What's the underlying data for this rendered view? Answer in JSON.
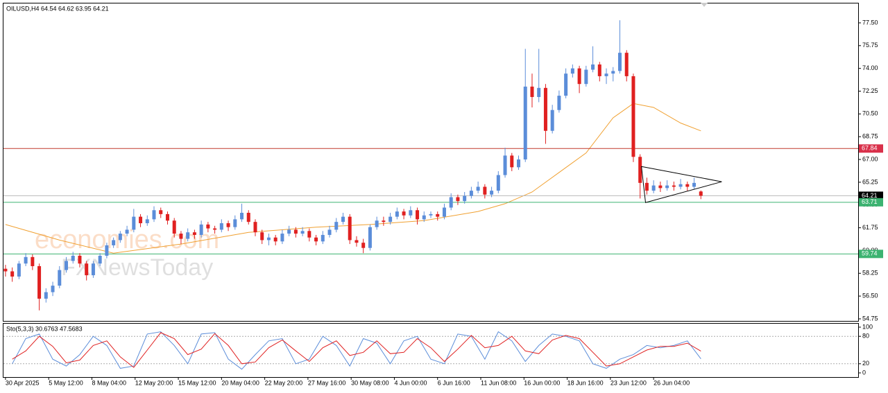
{
  "chart_data": {
    "type": "candlestick",
    "title": "OILUSD,H4  64.54 64.62 63.95 64.21",
    "watermarks": [
      "economies.com",
      "FXNewsToday"
    ],
    "up_color": "#5b8dd9",
    "down_color": "#e02020",
    "xlim": [
      -0.3,
      126.3
    ],
    "xticks": [
      {
        "value": 0,
        "label": "30 Apr 2025"
      },
      {
        "value": 6.4,
        "label": "5 May 12:00"
      },
      {
        "value": 12.8,
        "label": "8 May 04:00"
      },
      {
        "value": 19.2,
        "label": "12 May 20:00"
      },
      {
        "value": 25.6,
        "label": "15 May 12:00"
      },
      {
        "value": 32,
        "label": "20 May 04:00"
      },
      {
        "value": 38.4,
        "label": "22 May 20:00"
      },
      {
        "value": 44.8,
        "label": "27 May 16:00"
      },
      {
        "value": 51.2,
        "label": "30 May 08:00"
      },
      {
        "value": 57.6,
        "label": "4 Jun 00:00"
      },
      {
        "value": 64,
        "label": "6 Jun 16:00"
      },
      {
        "value": 70.4,
        "label": "11 Jun 08:00"
      },
      {
        "value": 76.8,
        "label": "16 Jun 00:00"
      },
      {
        "value": 83.2,
        "label": "18 Jun 16:00"
      },
      {
        "value": 89.6,
        "label": "23 Jun 12:00"
      },
      {
        "value": 96,
        "label": "26 Jun 04:00"
      }
    ],
    "ylim": [
      54.59,
      78.99
    ],
    "yticks": [
      {
        "value": 77.5,
        "label": "77.50"
      },
      {
        "value": 75.75,
        "label": "75.75"
      },
      {
        "value": 74,
        "label": "74.00"
      },
      {
        "value": 72.25,
        "label": "72.25"
      },
      {
        "value": 70.5,
        "label": "70.50"
      },
      {
        "value": 68.75,
        "label": "68.75"
      },
      {
        "value": 67,
        "label": "67.00"
      },
      {
        "value": 65.25,
        "label": "65.25"
      },
      {
        "value": 63.5,
        "label": "63.50"
      },
      {
        "value": 61.75,
        "label": "61.75"
      },
      {
        "value": 60,
        "label": "60.00"
      },
      {
        "value": 58.25,
        "label": "58.25"
      },
      {
        "value": 56.5,
        "label": "56.50"
      },
      {
        "value": 54.75,
        "label": "54.75"
      }
    ],
    "ohlc": [
      [
        58.6,
        58.9,
        58.0,
        58.4
      ],
      [
        58.4,
        58.7,
        57.6,
        58.0
      ],
      [
        58.0,
        59.2,
        57.8,
        59.0
      ],
      [
        59.0,
        59.8,
        58.8,
        59.5
      ],
      [
        59.5,
        59.7,
        58.5,
        58.8
      ],
      [
        58.8,
        59.0,
        55.4,
        56.3
      ],
      [
        56.3,
        57.1,
        56.0,
        56.8
      ],
      [
        56.8,
        57.6,
        56.5,
        57.3
      ],
      [
        57.3,
        58.8,
        57.1,
        58.5
      ],
      [
        58.5,
        59.5,
        58.3,
        59.2
      ],
      [
        59.2,
        59.9,
        59.0,
        59.6
      ],
      [
        59.6,
        59.8,
        58.7,
        59.0
      ],
      [
        59.0,
        59.2,
        57.7,
        58.1
      ],
      [
        58.1,
        59.2,
        57.9,
        59.0
      ],
      [
        59.0,
        59.8,
        58.8,
        59.6
      ],
      [
        59.6,
        60.6,
        59.4,
        60.4
      ],
      [
        60.4,
        61.0,
        60.2,
        60.8
      ],
      [
        60.8,
        61.5,
        60.6,
        61.3
      ],
      [
        61.3,
        61.9,
        61.1,
        61.6
      ],
      [
        61.6,
        63.2,
        61.4,
        62.6
      ],
      [
        62.6,
        62.8,
        61.8,
        62.1
      ],
      [
        62.1,
        62.7,
        61.9,
        62.4
      ],
      [
        62.4,
        63.4,
        62.2,
        63.1
      ],
      [
        63.1,
        63.3,
        62.5,
        62.8
      ],
      [
        62.8,
        63.0,
        62.0,
        62.3
      ],
      [
        62.3,
        62.5,
        61.0,
        61.3
      ],
      [
        61.3,
        61.5,
        60.5,
        60.9
      ],
      [
        60.9,
        61.7,
        60.7,
        61.4
      ],
      [
        61.4,
        61.6,
        60.9,
        61.2
      ],
      [
        61.2,
        62.3,
        61.0,
        62.0
      ],
      [
        62.0,
        62.2,
        61.4,
        61.7
      ],
      [
        61.7,
        61.9,
        61.3,
        61.6
      ],
      [
        61.6,
        62.4,
        61.4,
        62.1
      ],
      [
        62.1,
        62.3,
        61.5,
        61.8
      ],
      [
        61.8,
        62.7,
        61.6,
        62.4
      ],
      [
        62.4,
        63.6,
        62.2,
        62.9
      ],
      [
        62.9,
        63.1,
        62.0,
        62.2
      ],
      [
        62.2,
        62.4,
        61.1,
        61.4
      ],
      [
        61.4,
        61.6,
        60.5,
        60.8
      ],
      [
        60.8,
        61.3,
        60.4,
        61.0
      ],
      [
        61.0,
        61.2,
        60.4,
        60.7
      ],
      [
        60.7,
        61.6,
        60.5,
        61.3
      ],
      [
        61.3,
        61.9,
        61.1,
        61.6
      ],
      [
        61.6,
        61.8,
        61.0,
        61.3
      ],
      [
        61.3,
        61.8,
        61.1,
        61.5
      ],
      [
        61.5,
        61.7,
        60.7,
        61.0
      ],
      [
        61.0,
        61.2,
        60.4,
        60.7
      ],
      [
        60.7,
        61.5,
        60.5,
        61.2
      ],
      [
        61.2,
        61.9,
        61.0,
        61.6
      ],
      [
        61.6,
        62.5,
        61.4,
        62.2
      ],
      [
        62.2,
        62.9,
        62.0,
        62.6
      ],
      [
        62.6,
        62.8,
        60.5,
        60.8
      ],
      [
        60.8,
        61.1,
        60.3,
        60.6
      ],
      [
        60.6,
        60.9,
        59.8,
        60.2
      ],
      [
        60.2,
        62.0,
        60.0,
        61.8
      ],
      [
        61.8,
        62.6,
        61.6,
        62.3
      ],
      [
        62.3,
        62.6,
        61.9,
        62.2
      ],
      [
        62.2,
        62.9,
        62.0,
        62.6
      ],
      [
        62.6,
        63.3,
        62.4,
        63.0
      ],
      [
        63.0,
        63.2,
        62.4,
        62.7
      ],
      [
        62.7,
        63.4,
        62.5,
        63.1
      ],
      [
        63.1,
        63.3,
        62.0,
        62.4
      ],
      [
        62.4,
        63.0,
        62.2,
        62.7
      ],
      [
        62.7,
        63.0,
        62.5,
        62.8
      ],
      [
        62.8,
        63.0,
        62.3,
        62.6
      ],
      [
        62.6,
        63.6,
        62.4,
        63.3
      ],
      [
        63.3,
        64.4,
        63.1,
        64.1
      ],
      [
        64.1,
        64.3,
        63.5,
        63.8
      ],
      [
        63.8,
        64.5,
        63.6,
        64.2
      ],
      [
        64.2,
        64.9,
        64.0,
        64.6
      ],
      [
        64.6,
        65.3,
        64.4,
        64.9
      ],
      [
        64.9,
        65.1,
        64.0,
        64.3
      ],
      [
        64.3,
        64.9,
        64.1,
        64.6
      ],
      [
        64.6,
        66.1,
        64.4,
        65.8
      ],
      [
        65.8,
        67.9,
        65.6,
        67.3
      ],
      [
        67.3,
        67.5,
        66.1,
        66.4
      ],
      [
        66.4,
        67.3,
        66.2,
        67.0
      ],
      [
        67.0,
        75.5,
        66.8,
        72.6
      ],
      [
        72.6,
        73.6,
        71.0,
        71.8
      ],
      [
        71.8,
        75.5,
        71.4,
        72.5
      ],
      [
        72.5,
        72.8,
        68.2,
        69.2
      ],
      [
        69.2,
        71.2,
        69.0,
        70.8
      ],
      [
        70.8,
        72.3,
        70.6,
        71.9
      ],
      [
        71.9,
        74.0,
        71.7,
        73.6
      ],
      [
        73.6,
        74.3,
        73.3,
        74.0
      ],
      [
        74.0,
        74.2,
        72.1,
        72.8
      ],
      [
        72.8,
        74.2,
        72.6,
        73.9
      ],
      [
        73.9,
        75.7,
        73.7,
        74.3
      ],
      [
        74.3,
        74.5,
        73.0,
        73.4
      ],
      [
        73.4,
        74.0,
        72.8,
        73.6
      ],
      [
        73.6,
        74.1,
        73.0,
        73.8
      ],
      [
        73.8,
        77.7,
        73.6,
        75.2
      ],
      [
        75.2,
        75.4,
        73.0,
        73.4
      ],
      [
        73.4,
        73.6,
        66.8,
        67.2
      ],
      [
        67.2,
        67.4,
        64.0,
        65.2
      ],
      [
        65.2,
        65.6,
        64.3,
        64.6
      ],
      [
        64.6,
        65.4,
        64.4,
        65.0
      ],
      [
        65.0,
        65.3,
        64.5,
        64.8
      ],
      [
        64.8,
        65.4,
        64.6,
        65.0
      ],
      [
        65.0,
        65.3,
        64.6,
        64.9
      ],
      [
        64.9,
        65.5,
        64.7,
        65.1
      ],
      [
        65.1,
        65.3,
        64.6,
        64.9
      ],
      [
        64.9,
        65.6,
        64.7,
        65.2
      ],
      [
        64.54,
        64.62,
        63.95,
        64.21
      ]
    ],
    "ma": {
      "color": "#f0a030",
      "x": [
        0,
        8,
        16,
        26,
        36,
        46,
        54,
        62,
        70,
        74,
        78,
        82,
        86,
        90,
        93,
        96,
        100,
        103
      ],
      "values": [
        62.0,
        60.8,
        59.8,
        60.5,
        61.4,
        61.8,
        62.0,
        62.3,
        63.0,
        63.6,
        64.5,
        66.0,
        67.5,
        70.2,
        71.3,
        71.0,
        69.8,
        69.2
      ]
    },
    "levels": [
      {
        "value": 67.84,
        "color": "#c0392b",
        "label_color": "#d9304a"
      },
      {
        "value": 64.21,
        "color": "#b8b8b8",
        "label_color": "#000000"
      },
      {
        "value": 63.71,
        "color": "#3cb371",
        "label_color": "#3cb371"
      },
      {
        "value": 59.74,
        "color": "#3cb371",
        "label_color": "#3cb371"
      }
    ],
    "triangle": [
      [
        94.2,
        66.46
      ],
      [
        106.1,
        65.29
      ],
      [
        94.8,
        63.69
      ]
    ],
    "stoch": {
      "label": "Sto(5,3,3) 30.6763 47.5683",
      "ylim": [
        -7.6,
        107.6
      ],
      "yticks": [
        100,
        80,
        20,
        0
      ],
      "levels": [
        80,
        20
      ],
      "x": [
        1,
        3,
        5,
        7,
        9,
        11,
        13,
        15,
        17,
        19,
        21,
        23,
        25,
        27,
        29,
        31,
        33,
        35,
        37,
        39,
        41,
        43,
        45,
        47,
        49,
        51,
        53,
        55,
        57,
        59,
        61,
        63,
        65,
        67,
        69,
        71,
        73,
        75,
        77,
        79,
        81,
        83,
        85,
        87,
        89,
        91,
        93,
        95,
        97,
        99,
        101,
        103
      ],
      "series": [
        {
          "color": "#5b8dd9",
          "values": [
            20,
            75,
            85,
            30,
            15,
            40,
            80,
            60,
            10,
            15,
            85,
            90,
            60,
            20,
            85,
            88,
            30,
            8,
            40,
            70,
            75,
            20,
            30,
            80,
            60,
            15,
            75,
            65,
            20,
            70,
            80,
            30,
            20,
            85,
            80,
            30,
            90,
            70,
            25,
            60,
            85,
            80,
            70,
            20,
            10,
            30,
            40,
            60,
            55,
            60,
            70,
            30.6763
          ]
        },
        {
          "color": "#e02020",
          "values": [
            30,
            48,
            80,
            58,
            22,
            28,
            60,
            70,
            35,
            12,
            50,
            88,
            75,
            40,
            52,
            86,
            60,
            20,
            24,
            55,
            72,
            48,
            25,
            55,
            70,
            38,
            45,
            70,
            42,
            45,
            75,
            55,
            25,
            52,
            82,
            55,
            60,
            80,
            48,
            42,
            72,
            82,
            75,
            45,
            15,
            20,
            35,
            50,
            58,
            58,
            65,
            47.5683
          ]
        }
      ]
    }
  }
}
